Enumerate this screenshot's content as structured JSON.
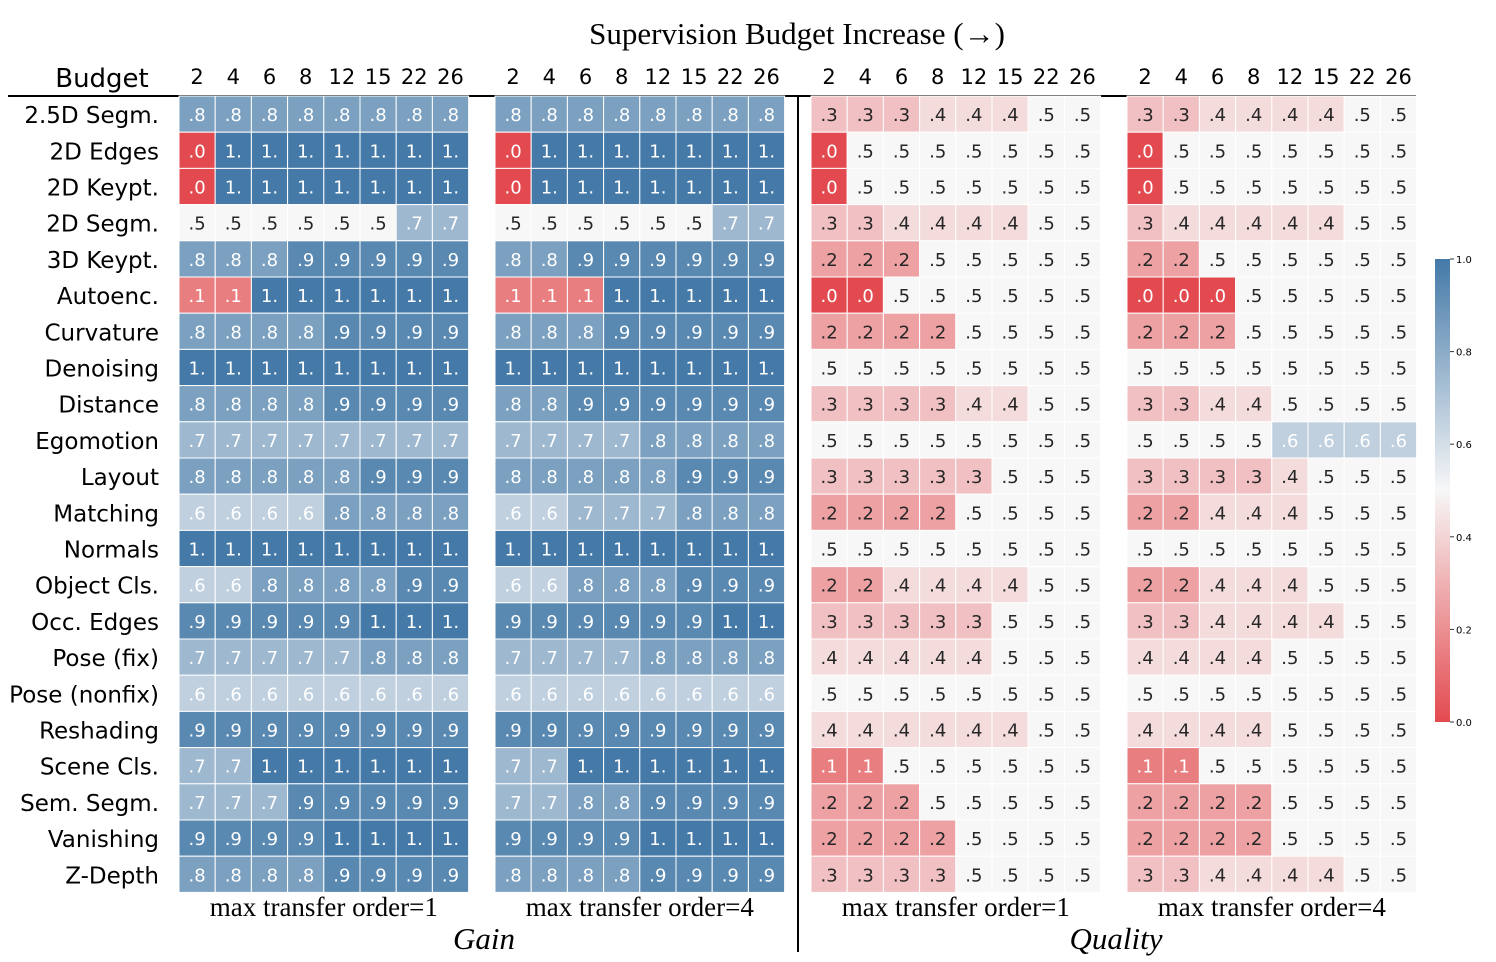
{
  "chart_data": {
    "type": "heatmap",
    "title": "Supervision Budget Increase (→)",
    "budget_label": "Budget",
    "budgets": [
      "2",
      "4",
      "6",
      "8",
      "12",
      "15",
      "22",
      "26"
    ],
    "rows": [
      "2.5D Segm.",
      "2D Edges",
      "2D Keypt.",
      "2D Segm.",
      "3D Keypt.",
      "Autoenc.",
      "Curvature",
      "Denoising",
      "Distance",
      "Egomotion",
      "Layout",
      "Matching",
      "Normals",
      "Object Cls.",
      "Occ. Edges",
      "Pose (fix)",
      "Pose (nonfix)",
      "Reshading",
      "Scene Cls.",
      "Sem. Segm.",
      "Vanishing",
      "Z-Depth"
    ],
    "group_labels": {
      "gain": "Gain",
      "quality": "Quality"
    },
    "colorbar": {
      "ticks": [
        "0.0",
        "0.2",
        "0.4",
        "0.6",
        "0.8",
        "1.0"
      ],
      "range": [
        0,
        1
      ],
      "low_color": "#e34a4f",
      "mid_color": "#f7f7f7",
      "high_color": "#4479a8"
    },
    "panels": [
      {
        "group": "gain",
        "label": "max transfer order=1",
        "values": [
          [
            0.8,
            0.8,
            0.8,
            0.8,
            0.8,
            0.8,
            0.8,
            0.8
          ],
          [
            0.0,
            1.0,
            1.0,
            1.0,
            1.0,
            1.0,
            1.0,
            1.0
          ],
          [
            0.0,
            1.0,
            1.0,
            1.0,
            1.0,
            1.0,
            1.0,
            1.0
          ],
          [
            0.5,
            0.5,
            0.5,
            0.5,
            0.5,
            0.5,
            0.7,
            0.7
          ],
          [
            0.8,
            0.8,
            0.8,
            0.9,
            0.9,
            0.9,
            0.9,
            0.9
          ],
          [
            0.1,
            0.1,
            1.0,
            1.0,
            1.0,
            1.0,
            1.0,
            1.0
          ],
          [
            0.8,
            0.8,
            0.8,
            0.8,
            0.9,
            0.9,
            0.9,
            0.9
          ],
          [
            1.0,
            1.0,
            1.0,
            1.0,
            1.0,
            1.0,
            1.0,
            1.0
          ],
          [
            0.8,
            0.8,
            0.8,
            0.8,
            0.9,
            0.9,
            0.9,
            0.9
          ],
          [
            0.7,
            0.7,
            0.7,
            0.7,
            0.7,
            0.7,
            0.7,
            0.7
          ],
          [
            0.8,
            0.8,
            0.8,
            0.8,
            0.8,
            0.9,
            0.9,
            0.9
          ],
          [
            0.6,
            0.6,
            0.6,
            0.6,
            0.8,
            0.8,
            0.8,
            0.8
          ],
          [
            1.0,
            1.0,
            1.0,
            1.0,
            1.0,
            1.0,
            1.0,
            1.0
          ],
          [
            0.6,
            0.6,
            0.8,
            0.8,
            0.8,
            0.8,
            0.9,
            0.9
          ],
          [
            0.9,
            0.9,
            0.9,
            0.9,
            0.9,
            1.0,
            1.0,
            1.0
          ],
          [
            0.7,
            0.7,
            0.7,
            0.7,
            0.7,
            0.8,
            0.8,
            0.8
          ],
          [
            0.6,
            0.6,
            0.6,
            0.6,
            0.6,
            0.6,
            0.6,
            0.6
          ],
          [
            0.9,
            0.9,
            0.9,
            0.9,
            0.9,
            0.9,
            0.9,
            0.9
          ],
          [
            0.7,
            0.7,
            1.0,
            1.0,
            1.0,
            1.0,
            1.0,
            1.0
          ],
          [
            0.7,
            0.7,
            0.7,
            0.9,
            0.9,
            0.9,
            0.9,
            0.9
          ],
          [
            0.9,
            0.9,
            0.9,
            0.9,
            1.0,
            1.0,
            1.0,
            1.0
          ],
          [
            0.8,
            0.8,
            0.8,
            0.8,
            0.9,
            0.9,
            0.9,
            0.9
          ]
        ]
      },
      {
        "group": "gain",
        "label": "max transfer order=4",
        "values": [
          [
            0.8,
            0.8,
            0.8,
            0.8,
            0.8,
            0.8,
            0.8,
            0.8
          ],
          [
            0.0,
            1.0,
            1.0,
            1.0,
            1.0,
            1.0,
            1.0,
            1.0
          ],
          [
            0.0,
            1.0,
            1.0,
            1.0,
            1.0,
            1.0,
            1.0,
            1.0
          ],
          [
            0.5,
            0.5,
            0.5,
            0.5,
            0.5,
            0.5,
            0.7,
            0.7
          ],
          [
            0.8,
            0.8,
            0.9,
            0.9,
            0.9,
            0.9,
            0.9,
            0.9
          ],
          [
            0.1,
            0.1,
            0.1,
            1.0,
            1.0,
            1.0,
            1.0,
            1.0
          ],
          [
            0.8,
            0.8,
            0.8,
            0.9,
            0.9,
            0.9,
            0.9,
            0.9
          ],
          [
            1.0,
            1.0,
            1.0,
            1.0,
            1.0,
            1.0,
            1.0,
            1.0
          ],
          [
            0.8,
            0.8,
            0.9,
            0.9,
            0.9,
            0.9,
            0.9,
            0.9
          ],
          [
            0.7,
            0.7,
            0.7,
            0.7,
            0.8,
            0.8,
            0.8,
            0.8
          ],
          [
            0.8,
            0.8,
            0.8,
            0.8,
            0.8,
            0.9,
            0.9,
            0.9
          ],
          [
            0.6,
            0.6,
            0.7,
            0.7,
            0.7,
            0.8,
            0.8,
            0.8
          ],
          [
            1.0,
            1.0,
            1.0,
            1.0,
            1.0,
            1.0,
            1.0,
            1.0
          ],
          [
            0.6,
            0.6,
            0.8,
            0.8,
            0.8,
            0.9,
            0.9,
            0.9
          ],
          [
            0.9,
            0.9,
            0.9,
            0.9,
            0.9,
            0.9,
            1.0,
            1.0
          ],
          [
            0.7,
            0.7,
            0.7,
            0.7,
            0.8,
            0.8,
            0.8,
            0.8
          ],
          [
            0.6,
            0.6,
            0.6,
            0.6,
            0.6,
            0.6,
            0.6,
            0.6
          ],
          [
            0.9,
            0.9,
            0.9,
            0.9,
            0.9,
            0.9,
            0.9,
            0.9
          ],
          [
            0.7,
            0.7,
            1.0,
            1.0,
            1.0,
            1.0,
            1.0,
            1.0
          ],
          [
            0.7,
            0.7,
            0.8,
            0.8,
            0.9,
            0.9,
            0.9,
            0.9
          ],
          [
            0.9,
            0.9,
            0.9,
            0.9,
            1.0,
            1.0,
            1.0,
            1.0
          ],
          [
            0.8,
            0.8,
            0.8,
            0.8,
            0.9,
            0.9,
            0.9,
            0.9
          ]
        ]
      },
      {
        "group": "quality",
        "label": "max transfer order=1",
        "values": [
          [
            0.3,
            0.3,
            0.3,
            0.4,
            0.4,
            0.4,
            0.5,
            0.5
          ],
          [
            0.0,
            0.5,
            0.5,
            0.5,
            0.5,
            0.5,
            0.5,
            0.5
          ],
          [
            0.0,
            0.5,
            0.5,
            0.5,
            0.5,
            0.5,
            0.5,
            0.5
          ],
          [
            0.3,
            0.3,
            0.4,
            0.4,
            0.4,
            0.4,
            0.5,
            0.5
          ],
          [
            0.2,
            0.2,
            0.2,
            0.5,
            0.5,
            0.5,
            0.5,
            0.5
          ],
          [
            0.0,
            0.0,
            0.5,
            0.5,
            0.5,
            0.5,
            0.5,
            0.5
          ],
          [
            0.2,
            0.2,
            0.2,
            0.2,
            0.5,
            0.5,
            0.5,
            0.5
          ],
          [
            0.5,
            0.5,
            0.5,
            0.5,
            0.5,
            0.5,
            0.5,
            0.5
          ],
          [
            0.3,
            0.3,
            0.3,
            0.3,
            0.4,
            0.4,
            0.5,
            0.5
          ],
          [
            0.5,
            0.5,
            0.5,
            0.5,
            0.5,
            0.5,
            0.5,
            0.5
          ],
          [
            0.3,
            0.3,
            0.3,
            0.3,
            0.3,
            0.5,
            0.5,
            0.5
          ],
          [
            0.2,
            0.2,
            0.2,
            0.2,
            0.5,
            0.5,
            0.5,
            0.5
          ],
          [
            0.5,
            0.5,
            0.5,
            0.5,
            0.5,
            0.5,
            0.5,
            0.5
          ],
          [
            0.2,
            0.2,
            0.4,
            0.4,
            0.4,
            0.4,
            0.5,
            0.5
          ],
          [
            0.3,
            0.3,
            0.3,
            0.3,
            0.3,
            0.5,
            0.5,
            0.5
          ],
          [
            0.4,
            0.4,
            0.4,
            0.4,
            0.4,
            0.5,
            0.5,
            0.5
          ],
          [
            0.5,
            0.5,
            0.5,
            0.5,
            0.5,
            0.5,
            0.5,
            0.5
          ],
          [
            0.4,
            0.4,
            0.4,
            0.4,
            0.4,
            0.4,
            0.5,
            0.5
          ],
          [
            0.1,
            0.1,
            0.5,
            0.5,
            0.5,
            0.5,
            0.5,
            0.5
          ],
          [
            0.2,
            0.2,
            0.2,
            0.5,
            0.5,
            0.5,
            0.5,
            0.5
          ],
          [
            0.2,
            0.2,
            0.2,
            0.2,
            0.5,
            0.5,
            0.5,
            0.5
          ],
          [
            0.3,
            0.3,
            0.3,
            0.3,
            0.5,
            0.5,
            0.5,
            0.5
          ]
        ]
      },
      {
        "group": "quality",
        "label": "max transfer order=4",
        "values": [
          [
            0.3,
            0.3,
            0.4,
            0.4,
            0.4,
            0.4,
            0.5,
            0.5
          ],
          [
            0.0,
            0.5,
            0.5,
            0.5,
            0.5,
            0.5,
            0.5,
            0.5
          ],
          [
            0.0,
            0.5,
            0.5,
            0.5,
            0.5,
            0.5,
            0.5,
            0.5
          ],
          [
            0.3,
            0.4,
            0.4,
            0.4,
            0.4,
            0.4,
            0.5,
            0.5
          ],
          [
            0.2,
            0.2,
            0.5,
            0.5,
            0.5,
            0.5,
            0.5,
            0.5
          ],
          [
            0.0,
            0.0,
            0.0,
            0.5,
            0.5,
            0.5,
            0.5,
            0.5
          ],
          [
            0.2,
            0.2,
            0.2,
            0.5,
            0.5,
            0.5,
            0.5,
            0.5
          ],
          [
            0.5,
            0.5,
            0.5,
            0.5,
            0.5,
            0.5,
            0.5,
            0.5
          ],
          [
            0.3,
            0.3,
            0.4,
            0.4,
            0.5,
            0.5,
            0.5,
            0.5
          ],
          [
            0.5,
            0.5,
            0.5,
            0.5,
            0.6,
            0.6,
            0.6,
            0.6
          ],
          [
            0.3,
            0.3,
            0.3,
            0.3,
            0.4,
            0.5,
            0.5,
            0.5
          ],
          [
            0.2,
            0.2,
            0.4,
            0.4,
            0.4,
            0.5,
            0.5,
            0.5
          ],
          [
            0.5,
            0.5,
            0.5,
            0.5,
            0.5,
            0.5,
            0.5,
            0.5
          ],
          [
            0.2,
            0.2,
            0.4,
            0.4,
            0.4,
            0.5,
            0.5,
            0.5
          ],
          [
            0.3,
            0.3,
            0.4,
            0.4,
            0.4,
            0.4,
            0.5,
            0.5
          ],
          [
            0.4,
            0.4,
            0.4,
            0.4,
            0.5,
            0.5,
            0.5,
            0.5
          ],
          [
            0.5,
            0.5,
            0.5,
            0.5,
            0.5,
            0.5,
            0.5,
            0.5
          ],
          [
            0.4,
            0.4,
            0.4,
            0.4,
            0.5,
            0.5,
            0.5,
            0.5
          ],
          [
            0.1,
            0.1,
            0.5,
            0.5,
            0.5,
            0.5,
            0.5,
            0.5
          ],
          [
            0.2,
            0.2,
            0.2,
            0.2,
            0.5,
            0.5,
            0.5,
            0.5
          ],
          [
            0.2,
            0.2,
            0.2,
            0.2,
            0.5,
            0.5,
            0.5,
            0.5
          ],
          [
            0.3,
            0.3,
            0.4,
            0.4,
            0.4,
            0.4,
            0.5,
            0.5
          ]
        ]
      }
    ]
  }
}
